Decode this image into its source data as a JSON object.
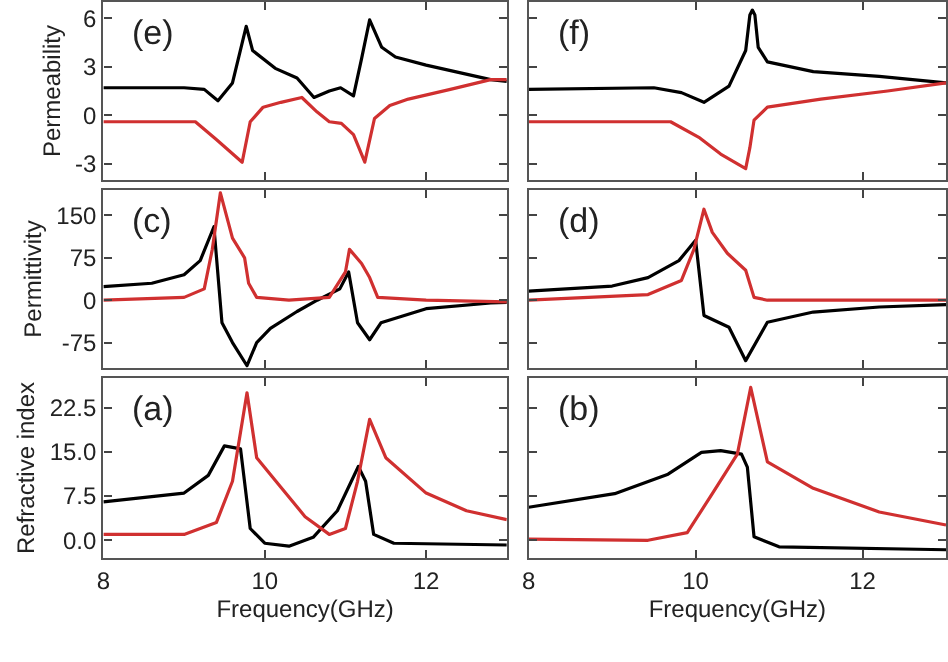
{
  "chart_data": [
    {
      "type": "line",
      "annotations": [
        "(e)"
      ],
      "ylabel": "Permeability",
      "xlim": [
        8,
        13
      ],
      "xticks": [
        8,
        10,
        12
      ],
      "ylim": [
        -4,
        7
      ],
      "yticks": [
        -3,
        0,
        3,
        6
      ],
      "tick_labels": "y",
      "grid": false,
      "series": [
        {
          "color": "#000000",
          "x": [
            8,
            9.0,
            9.25,
            9.42,
            9.6,
            9.77,
            9.85,
            10.13,
            10.4,
            10.61,
            10.8,
            10.94,
            11.1,
            11.2,
            11.3,
            11.45,
            11.62,
            12.0,
            12.8,
            13
          ],
          "values": [
            1.7,
            1.7,
            1.6,
            0.9,
            2.0,
            5.5,
            4.0,
            2.9,
            2.3,
            1.1,
            1.5,
            1.7,
            1.2,
            3.5,
            5.9,
            4.2,
            3.6,
            3.1,
            2.2,
            2.1
          ]
        },
        {
          "color": "#d03030",
          "x": [
            8,
            9.14,
            9.4,
            9.72,
            9.82,
            9.98,
            10.2,
            10.46,
            10.65,
            10.8,
            10.95,
            11.1,
            11.24,
            11.36,
            11.55,
            11.78,
            12.3,
            12.8,
            13
          ],
          "values": [
            -0.4,
            -0.4,
            -1.5,
            -2.9,
            -0.4,
            0.5,
            0.8,
            1.1,
            0.2,
            -0.4,
            -0.5,
            -1.2,
            -2.9,
            -0.2,
            0.6,
            1.0,
            1.6,
            2.2,
            2.2
          ]
        }
      ]
    },
    {
      "type": "line",
      "annotations": [
        "(f)"
      ],
      "xlim": [
        8,
        13
      ],
      "xticks": [
        8,
        10,
        12
      ],
      "ylim": [
        -4,
        7
      ],
      "yticks": [
        -3,
        0,
        3,
        6
      ],
      "tick_labels": false,
      "grid": false,
      "series": [
        {
          "color": "#000000",
          "x": [
            8,
            9.5,
            9.83,
            10.1,
            10.4,
            10.6,
            10.65,
            10.68,
            10.71,
            10.75,
            10.86,
            11.41,
            12.2,
            13
          ],
          "values": [
            1.6,
            1.7,
            1.4,
            0.8,
            1.8,
            4.0,
            6.2,
            6.5,
            6.2,
            4.2,
            3.3,
            2.7,
            2.4,
            2.0
          ]
        },
        {
          "color": "#d03030",
          "x": [
            8,
            9.7,
            10.05,
            10.3,
            10.6,
            10.65,
            10.7,
            10.86,
            11.5,
            12.3,
            13
          ],
          "values": [
            -0.4,
            -0.4,
            -1.4,
            -2.4,
            -3.3,
            -2.0,
            -0.3,
            0.5,
            1.0,
            1.5,
            2.0
          ]
        }
      ]
    },
    {
      "type": "line",
      "annotations": [
        "(c)"
      ],
      "ylabel": "Permittivity",
      "xlim": [
        8,
        13
      ],
      "xticks": [
        8,
        10,
        12
      ],
      "ylim": [
        -120,
        195
      ],
      "yticks": [
        -75,
        0,
        75,
        150
      ],
      "tick_labels": "y",
      "grid": false,
      "series": [
        {
          "color": "#000000",
          "x": [
            8,
            8.6,
            9.0,
            9.2,
            9.37,
            9.47,
            9.6,
            9.78,
            9.9,
            10.07,
            10.4,
            10.65,
            10.93,
            11.04,
            11.15,
            11.3,
            11.44,
            12.0,
            12.8,
            13
          ],
          "values": [
            24,
            30,
            45,
            70,
            130,
            -40,
            -75,
            -116,
            -75,
            -50,
            -20,
            0,
            20,
            50,
            -40,
            -70,
            -40,
            -15,
            -5,
            -4
          ]
        },
        {
          "color": "#d03030",
          "x": [
            8,
            9.0,
            9.25,
            9.35,
            9.45,
            9.6,
            9.75,
            9.8,
            9.9,
            10.3,
            10.8,
            11.0,
            11.05,
            11.2,
            11.3,
            11.4,
            12.0,
            13
          ],
          "values": [
            0,
            5,
            20,
            90,
            190,
            110,
            75,
            30,
            5,
            0,
            5,
            50,
            90,
            65,
            40,
            5,
            0,
            -3
          ]
        }
      ]
    },
    {
      "type": "line",
      "annotations": [
        "(d)"
      ],
      "xlim": [
        8,
        13
      ],
      "xticks": [
        8,
        10,
        12
      ],
      "ylim": [
        -120,
        195
      ],
      "yticks": [
        -75,
        0,
        75,
        150
      ],
      "tick_labels": false,
      "grid": false,
      "series": [
        {
          "color": "#000000",
          "x": [
            8,
            9.0,
            9.43,
            9.8,
            10.0,
            10.1,
            10.4,
            10.6,
            10.86,
            11.41,
            12.2,
            13
          ],
          "values": [
            16,
            25,
            40,
            70,
            106,
            -27,
            -48,
            -107,
            -39,
            -21,
            -12,
            -8
          ]
        },
        {
          "color": "#d03030",
          "x": [
            8,
            9.43,
            9.83,
            9.98,
            10.1,
            10.2,
            10.38,
            10.6,
            10.7,
            10.86,
            13
          ],
          "values": [
            0,
            10,
            35,
            90,
            161,
            120,
            83,
            53,
            5,
            0,
            0
          ]
        }
      ]
    },
    {
      "type": "line",
      "annotations": [
        "(a)"
      ],
      "ylabel": "Refractive index",
      "xlabel": "Frequency(GHz)",
      "xlim": [
        8,
        13
      ],
      "xticks": [
        8,
        10,
        12
      ],
      "ylim": [
        -3,
        27.5
      ],
      "yticks": [
        {
          "value": 0,
          "label": "0.0"
        },
        7.5,
        {
          "value": 15,
          "label": "15.0"
        },
        22.5
      ],
      "grid": false,
      "series": [
        {
          "color": "#000000",
          "x": [
            8,
            9.0,
            9.3,
            9.5,
            9.7,
            9.82,
            10.0,
            10.3,
            10.6,
            10.9,
            11.16,
            11.25,
            11.35,
            11.6,
            13
          ],
          "values": [
            6.5,
            8,
            11,
            16,
            15.5,
            2,
            -0.5,
            -1,
            0.5,
            5,
            12.5,
            10,
            1,
            -0.5,
            -0.8
          ]
        },
        {
          "color": "#d03030",
          "x": [
            8,
            9.0,
            9.4,
            9.6,
            9.78,
            9.9,
            10.2,
            10.5,
            10.8,
            11.0,
            11.15,
            11.3,
            11.5,
            12.0,
            12.5,
            13
          ],
          "values": [
            1,
            1,
            3,
            10,
            25,
            14,
            9,
            4,
            1,
            2,
            10,
            20.5,
            14,
            8,
            5,
            3.5
          ]
        }
      ]
    },
    {
      "type": "line",
      "annotations": [
        "(b)"
      ],
      "xlabel": "Frequency(GHz)",
      "xlim": [
        8,
        13
      ],
      "xticks": [
        8,
        10,
        12
      ],
      "ylim": [
        -3,
        27.5
      ],
      "yticks": [
        0,
        7.5,
        15,
        22.5
      ],
      "tick_labels": "x",
      "grid": false,
      "series": [
        {
          "color": "#000000",
          "x": [
            8,
            9.03,
            9.67,
            10.07,
            10.3,
            10.55,
            10.62,
            10.7,
            11.0,
            13
          ],
          "values": [
            5.6,
            7.9,
            11.2,
            14.9,
            15.2,
            14.6,
            12.4,
            0.6,
            -1.1,
            -1.6
          ]
        },
        {
          "color": "#d03030",
          "x": [
            8,
            9.43,
            9.9,
            10.2,
            10.5,
            10.66,
            10.86,
            11.41,
            12.2,
            13
          ],
          "values": [
            0.2,
            0,
            1.3,
            7.9,
            14.6,
            25.9,
            13.3,
            8.8,
            4.8,
            2.6
          ]
        }
      ]
    }
  ]
}
